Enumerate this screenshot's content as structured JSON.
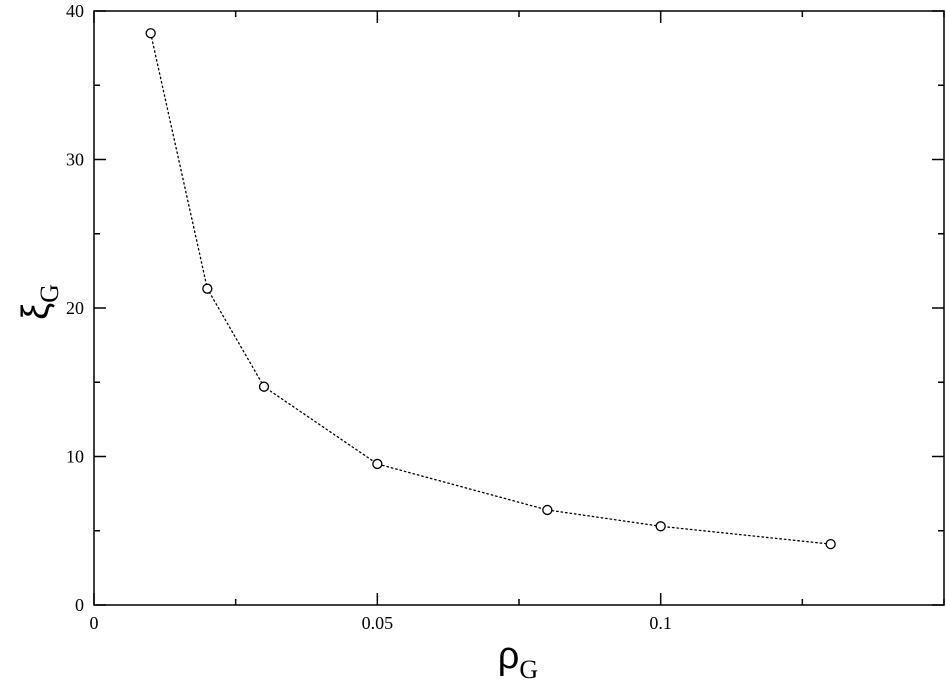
{
  "chart_data": {
    "type": "line",
    "title": "",
    "xlabel": {
      "symbol": "ρ",
      "subscript": "G"
    },
    "ylabel": {
      "symbol": "ξ",
      "subscript": "G"
    },
    "xlim": [
      0,
      0.15
    ],
    "ylim": [
      0,
      40
    ],
    "xticks": [
      0,
      0.05,
      0.1
    ],
    "xtick_labels": [
      "0",
      "0.05",
      "0.1"
    ],
    "yticks": [
      0,
      10,
      20,
      30,
      40
    ],
    "ytick_labels": [
      "0",
      "10",
      "20",
      "30",
      "40"
    ],
    "grid": false,
    "series": [
      {
        "marker": "open-circle",
        "line_style": "dotted",
        "color": "#000000",
        "x": [
          0.01,
          0.02,
          0.03,
          0.05,
          0.08,
          0.1,
          0.13
        ],
        "y": [
          38.5,
          21.3,
          14.7,
          9.5,
          6.4,
          5.3,
          4.1
        ]
      }
    ]
  }
}
